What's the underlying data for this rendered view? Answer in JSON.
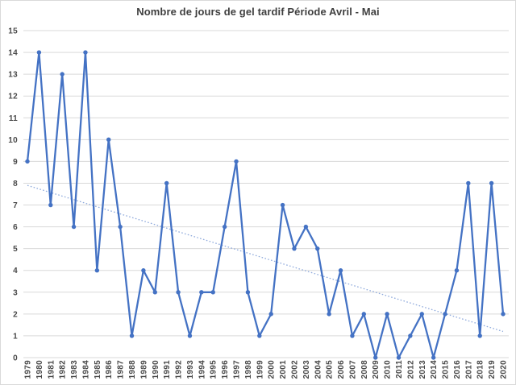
{
  "chart_title": "Nombre de jours de gel tardif Période Avril - Mai",
  "chart_data": {
    "type": "line",
    "title": "Nombre de jours de gel tardif Période Avril - Mai",
    "categories": [
      "1979",
      "1980",
      "1981",
      "1982",
      "1983",
      "1984",
      "1985",
      "1986",
      "1987",
      "1988",
      "1989",
      "1990",
      "1991",
      "1992",
      "1993",
      "1994",
      "1995",
      "1996",
      "1997",
      "1998",
      "1999",
      "2000",
      "2001",
      "2002",
      "2003",
      "2004",
      "2005",
      "2006",
      "2007",
      "2008",
      "2009",
      "2010",
      "2011",
      "2012",
      "2013",
      "2014",
      "2015",
      "2016",
      "2017",
      "2018",
      "2019",
      "2020"
    ],
    "values": [
      9,
      14,
      7,
      13,
      6,
      14,
      4,
      10,
      6,
      1,
      4,
      3,
      8,
      3,
      1,
      3,
      3,
      6,
      9,
      3,
      1,
      2,
      7,
      5,
      6,
      5,
      2,
      4,
      1,
      2,
      0,
      2,
      0,
      1,
      2,
      0,
      2,
      4,
      8,
      1,
      8,
      2
    ],
    "xlabel": "",
    "ylabel": "",
    "ylim": [
      0,
      15
    ],
    "ytick_step": 1,
    "grid": true,
    "legend": false,
    "marker": "circle",
    "colors": {
      "series": "#4472C4",
      "trendline": "#8FAADC",
      "grid": "#D9D9D9",
      "axis_labels": "#494949",
      "title": "#3F3F3F",
      "border": "#D9D9D9"
    },
    "trendline": {
      "type": "linear",
      "style": "dotted",
      "start_value": 7.9,
      "end_value": 1.2
    }
  }
}
